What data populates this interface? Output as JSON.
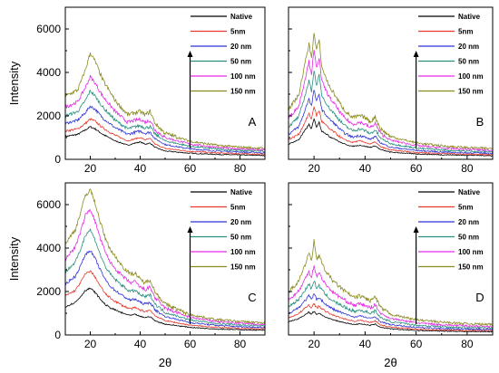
{
  "chart_data": {
    "type": "line",
    "x_label": "2θ",
    "y_label": "Intensity",
    "xlim": [
      10,
      90
    ],
    "ylim": [
      0,
      7000
    ],
    "xticks": [
      20,
      40,
      60,
      80
    ],
    "yticks": [
      0,
      2000,
      4000,
      6000
    ],
    "legend": [
      "Native",
      "5nm",
      "20 nm",
      "50 nm",
      "100 nm",
      "150 nm"
    ],
    "legend_placement": "top-right",
    "series_colors": [
      "#000000",
      "#e8382b",
      "#2f33d6",
      "#2a8f7e",
      "#e62be6",
      "#8a8a1f"
    ],
    "panels": [
      {
        "letter": "A",
        "show_ylabel": true,
        "show_xlabel": false,
        "x": [
          10,
          15,
          18,
          20,
          22,
          25,
          30,
          35,
          38,
          40,
          42,
          44,
          46,
          50,
          60,
          70,
          80,
          90
        ],
        "series": [
          {
            "values": [
              1050,
              1150,
              1350,
              1500,
              1400,
              1150,
              850,
              650,
              750,
              800,
              700,
              750,
              550,
              380,
              280,
              230,
              200,
              180
            ]
          },
          {
            "values": [
              1300,
              1400,
              1650,
              1850,
              1750,
              1450,
              1100,
              850,
              950,
              1000,
              900,
              950,
              700,
              500,
              370,
              300,
              260,
              230
            ]
          },
          {
            "values": [
              1650,
              1800,
              2150,
              2450,
              2300,
              1900,
              1450,
              1150,
              1250,
              1300,
              1200,
              1250,
              950,
              680,
              480,
              390,
              340,
              300
            ]
          },
          {
            "values": [
              2000,
              2200,
              2700,
              3150,
              2900,
              2400,
              1800,
              1400,
              1500,
              1550,
              1450,
              1500,
              1150,
              850,
              600,
              480,
              410,
              370
            ]
          },
          {
            "values": [
              2400,
              2650,
              3300,
              3800,
              3500,
              2900,
              2200,
              1700,
              1800,
              1850,
              1700,
              1800,
              1350,
              1000,
              700,
              560,
              480,
              430
            ]
          },
          {
            "values": [
              2900,
              3200,
              4100,
              4900,
              4500,
              3650,
              2700,
              2050,
              2150,
              2200,
              2050,
              2200,
              1650,
              1200,
              830,
              660,
              560,
              500
            ]
          }
        ],
        "arrow_x": 60
      },
      {
        "letter": "B",
        "show_ylabel": false,
        "show_xlabel": false,
        "x": [
          10,
          14,
          16,
          18,
          19,
          20,
          21,
          22,
          23,
          24,
          26,
          28,
          30,
          32,
          35,
          38,
          40,
          42,
          44,
          46,
          50,
          60,
          70,
          80,
          90
        ],
        "series": [
          {
            "values": [
              700,
              900,
              1250,
              1600,
              1400,
              1850,
              1500,
              1700,
              1300,
              1250,
              1050,
              950,
              800,
              700,
              600,
              650,
              600,
              550,
              620,
              450,
              330,
              250,
              210,
              190,
              170
            ]
          },
          {
            "values": [
              900,
              1150,
              1600,
              2100,
              1850,
              2450,
              2000,
              2250,
              1750,
              1650,
              1400,
              1250,
              1050,
              900,
              780,
              850,
              780,
              700,
              800,
              580,
              430,
              320,
              270,
              240,
              220
            ]
          },
          {
            "values": [
              1150,
              1500,
              2100,
              2800,
              2450,
              3200,
              2650,
              3000,
              2300,
              2150,
              1850,
              1650,
              1400,
              1200,
              1020,
              1100,
              1020,
              920,
              1050,
              760,
              560,
              410,
              340,
              300,
              280
            ]
          },
          {
            "values": [
              1500,
              1950,
              2750,
              3600,
              3150,
              4100,
              3400,
              3850,
              2950,
              2750,
              2350,
              2100,
              1800,
              1550,
              1320,
              1400,
              1320,
              1180,
              1350,
              980,
              720,
              520,
              430,
              380,
              350
            ]
          },
          {
            "values": [
              1900,
              2450,
              3450,
              4500,
              3950,
              5000,
              4200,
              4700,
              3600,
              3350,
              2850,
              2550,
              2200,
              1900,
              1620,
              1700,
              1620,
              1450,
              1650,
              1200,
              880,
              640,
              520,
              460,
              420
            ]
          },
          {
            "values": [
              2300,
              2950,
              4150,
              5300,
              4700,
              5800,
              5000,
              5500,
              4250,
              3950,
              3350,
              3000,
              2600,
              2250,
              1920,
              2000,
              1920,
              1720,
              1950,
              1420,
              1040,
              760,
              620,
              540,
              500
            ]
          }
        ],
        "arrow_x": 60
      },
      {
        "letter": "C",
        "show_ylabel": true,
        "show_xlabel": true,
        "x": [
          10,
          14,
          16,
          18,
          20,
          22,
          24,
          26,
          28,
          30,
          33,
          36,
          38,
          40,
          42,
          44,
          46,
          50,
          60,
          70,
          80,
          90
        ],
        "series": [
          {
            "values": [
              1300,
              1500,
              1750,
              2050,
              2150,
              1950,
              1650,
              1400,
              1250,
              1150,
              1000,
              900,
              950,
              850,
              800,
              850,
              650,
              500,
              350,
              280,
              240,
              220
            ]
          },
          {
            "values": [
              1800,
              2050,
              2400,
              2800,
              2950,
              2650,
              2250,
              1900,
              1700,
              1550,
              1350,
              1200,
              1250,
              1150,
              1080,
              1150,
              880,
              660,
              450,
              360,
              300,
              280
            ]
          },
          {
            "values": [
              2350,
              2700,
              3150,
              3700,
              3900,
              3500,
              3000,
              2550,
              2250,
              2050,
              1800,
              1600,
              1650,
              1500,
              1420,
              1500,
              1150,
              850,
              570,
              450,
              380,
              350
            ]
          },
          {
            "values": [
              2900,
              3350,
              3900,
              4600,
              4850,
              4350,
              3700,
              3150,
              2800,
              2550,
              2250,
              2000,
              2050,
              1850,
              1750,
              1850,
              1420,
              1040,
              690,
              540,
              460,
              420
            ]
          },
          {
            "values": [
              3500,
              4050,
              4700,
              5500,
              5800,
              5200,
              4450,
              3800,
              3350,
              3050,
              2700,
              2400,
              2450,
              2200,
              2080,
              2200,
              1700,
              1230,
              810,
              630,
              540,
              490
            ]
          },
          {
            "values": [
              4200,
              4850,
              5600,
              6400,
              6700,
              6050,
              5200,
              4450,
              3950,
              3600,
              3150,
              2800,
              2850,
              2550,
              2400,
              2550,
              1980,
              1420,
              930,
              720,
              620,
              560
            ]
          }
        ],
        "arrow_x": 60
      },
      {
        "letter": "D",
        "show_ylabel": false,
        "show_xlabel": true,
        "x": [
          10,
          14,
          16,
          18,
          19,
          20,
          21,
          22,
          24,
          26,
          28,
          30,
          33,
          36,
          38,
          40,
          42,
          44,
          46,
          50,
          60,
          70,
          80,
          90
        ],
        "series": [
          {
            "values": [
              600,
              750,
              900,
              1050,
              950,
              1100,
              950,
              1000,
              850,
              750,
              680,
              620,
              540,
              480,
              520,
              480,
              440,
              500,
              360,
              280,
              210,
              180,
              160,
              150
            ]
          },
          {
            "values": [
              780,
              980,
              1180,
              1380,
              1250,
              1450,
              1250,
              1320,
              1120,
              990,
              890,
              810,
              710,
              630,
              680,
              630,
              580,
              650,
              470,
              360,
              270,
              230,
              210,
              195
            ]
          },
          {
            "values": [
              1000,
              1260,
              1520,
              1800,
              1620,
              1900,
              1640,
              1730,
              1460,
              1290,
              1160,
              1060,
              930,
              820,
              880,
              820,
              760,
              850,
              610,
              470,
              350,
              300,
              270,
              250
            ]
          },
          {
            "values": [
              1300,
              1640,
              1980,
              2350,
              2120,
              2500,
              2150,
              2270,
              1920,
              1700,
              1530,
              1400,
              1220,
              1080,
              1150,
              1080,
              1000,
              1110,
              800,
              610,
              450,
              380,
              340,
              320
            ]
          },
          {
            "values": [
              1600,
              2020,
              2450,
              2950,
              2650,
              3200,
              2700,
              2850,
              2420,
              2140,
              1920,
              1760,
              1530,
              1350,
              1440,
              1350,
              1250,
              1390,
              1000,
              760,
              560,
              470,
              420,
              390
            ]
          },
          {
            "values": [
              1950,
              2480,
              3050,
              3800,
              3350,
              4400,
              3500,
              3650,
              3050,
              2700,
              2420,
              2220,
              1930,
              1700,
              1800,
              1700,
              1570,
              1750,
              1260,
              950,
              700,
              590,
              520,
              480
            ]
          }
        ],
        "arrow_x": 60
      }
    ]
  }
}
